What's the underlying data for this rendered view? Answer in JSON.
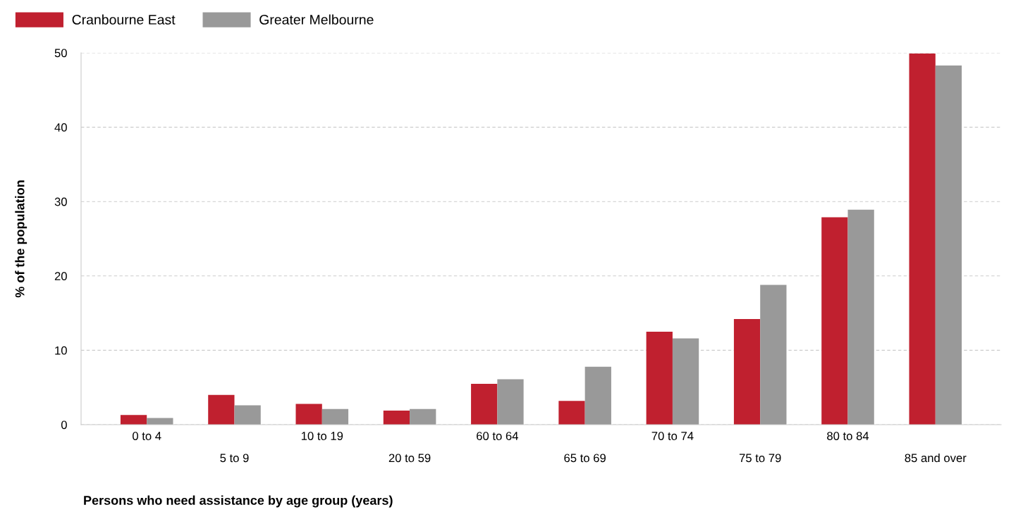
{
  "chart_data": {
    "type": "bar",
    "xlabel": "Persons who need assistance by age group (years)",
    "ylabel": "% of the population",
    "categories": [
      "0 to 4",
      "5 to 9",
      "10 to 19",
      "20 to 59",
      "60 to 64",
      "65 to 69",
      "70 to 74",
      "75 to 79",
      "80 to 84",
      "85 and over"
    ],
    "series": [
      {
        "name": "Cranbourne East",
        "color": "#c0202f",
        "values": [
          1.3,
          4.0,
          2.8,
          1.9,
          5.5,
          3.2,
          12.5,
          14.2,
          27.9,
          49.9
        ]
      },
      {
        "name": "Greater Melbourne",
        "color": "#999999",
        "values": [
          0.9,
          2.6,
          2.1,
          2.1,
          6.1,
          7.8,
          11.6,
          18.8,
          28.9,
          48.3
        ]
      }
    ],
    "ylim": [
      0,
      50
    ],
    "yticks": [
      0,
      10,
      20,
      30,
      40,
      50
    ],
    "grid": "y",
    "legend": "top left"
  }
}
